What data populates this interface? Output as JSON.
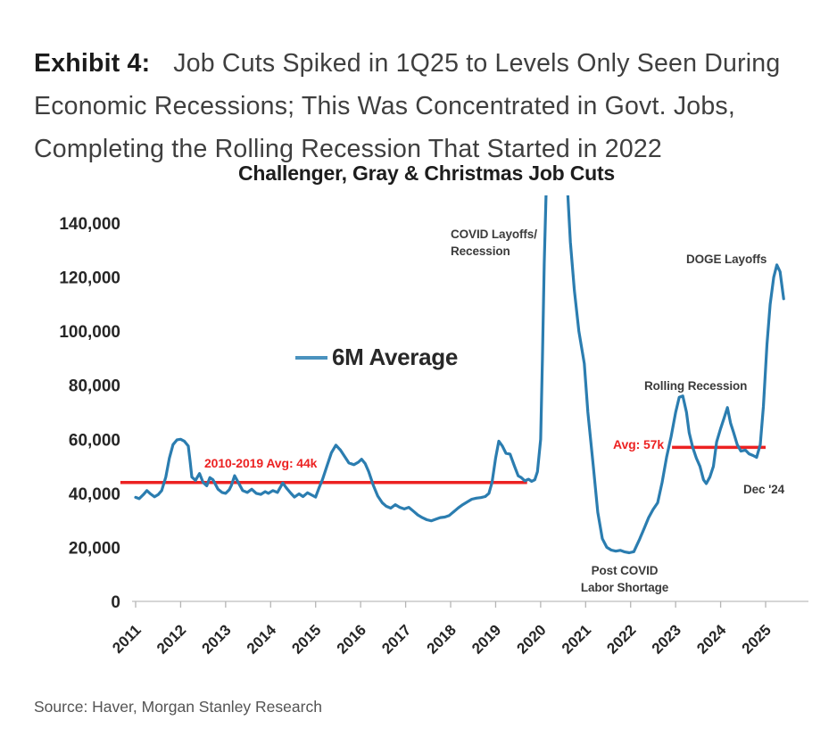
{
  "header": {
    "exhibit_label": "Exhibit 4:",
    "title": "Job Cuts Spiked in 1Q25 to Levels Only Seen During Economic Recessions; This Was Concentrated in Govt. Jobs, Completing the Rolling Recession That Started in 2022"
  },
  "source": "Source: Haver, Morgan Stanley Research",
  "chart_data": {
    "type": "line",
    "title": "Challenger, Gray & Christmas Job Cuts",
    "xlabel": "",
    "ylabel": "",
    "grid": false,
    "legend": {
      "label": "6M Average",
      "position": "inside-plot-upper-left"
    },
    "x_tick_labels": [
      "2011",
      "2012",
      "2013",
      "2014",
      "2015",
      "2016",
      "2017",
      "2018",
      "2019",
      "2020",
      "2021",
      "2022",
      "2023",
      "2024",
      "2025"
    ],
    "y_ticks": [
      {
        "value": 0,
        "label": "0"
      },
      {
        "value": 20000,
        "label": "20,000"
      },
      {
        "value": 40000,
        "label": "40,000"
      },
      {
        "value": 60000,
        "label": "60,000"
      },
      {
        "value": 80000,
        "label": "80,000"
      },
      {
        "value": 100000,
        "label": "100,000"
      },
      {
        "value": 120000,
        "label": "120,000"
      },
      {
        "value": 140000,
        "label": "140,000"
      }
    ],
    "ylim": [
      0,
      150000
    ],
    "x_range": [
      2010.6,
      2025.95
    ],
    "series": [
      {
        "name": "6M Average",
        "color": "#2b7db0",
        "units": "job cuts per month, 6-month average (values in thousands)",
        "points": [
          [
            2011.0,
            38.5
          ],
          [
            2011.08,
            38
          ],
          [
            2011.17,
            39.5
          ],
          [
            2011.25,
            41
          ],
          [
            2011.33,
            39.8
          ],
          [
            2011.42,
            38.7
          ],
          [
            2011.5,
            39.5
          ],
          [
            2011.58,
            41
          ],
          [
            2011.67,
            46
          ],
          [
            2011.75,
            53
          ],
          [
            2011.83,
            58
          ],
          [
            2011.92,
            59.8
          ],
          [
            2012.0,
            60
          ],
          [
            2012.08,
            59.3
          ],
          [
            2012.17,
            57.5
          ],
          [
            2012.21,
            52
          ],
          [
            2012.25,
            46
          ],
          [
            2012.33,
            44.8
          ],
          [
            2012.42,
            47.3
          ],
          [
            2012.5,
            44
          ],
          [
            2012.58,
            42.8
          ],
          [
            2012.65,
            45.8
          ],
          [
            2012.72,
            45
          ],
          [
            2012.83,
            41.5
          ],
          [
            2012.92,
            40.3
          ],
          [
            2013.0,
            40
          ],
          [
            2013.08,
            41.3
          ],
          [
            2013.13,
            43
          ],
          [
            2013.2,
            46.5
          ],
          [
            2013.28,
            44
          ],
          [
            2013.38,
            41
          ],
          [
            2013.48,
            40.3
          ],
          [
            2013.58,
            41.5
          ],
          [
            2013.68,
            40
          ],
          [
            2013.78,
            39.6
          ],
          [
            2013.88,
            40.6
          ],
          [
            2013.95,
            40
          ],
          [
            2014.05,
            41
          ],
          [
            2014.15,
            40.3
          ],
          [
            2014.27,
            43.8
          ],
          [
            2014.35,
            42
          ],
          [
            2014.45,
            40
          ],
          [
            2014.53,
            38.6
          ],
          [
            2014.63,
            39.8
          ],
          [
            2014.72,
            38.8
          ],
          [
            2014.82,
            40.2
          ],
          [
            2014.92,
            39.3
          ],
          [
            2015.0,
            38.6
          ],
          [
            2015.07,
            41.8
          ],
          [
            2015.15,
            45
          ],
          [
            2015.25,
            50
          ],
          [
            2015.35,
            55
          ],
          [
            2015.45,
            57.8
          ],
          [
            2015.55,
            56
          ],
          [
            2015.65,
            53.5
          ],
          [
            2015.74,
            51.2
          ],
          [
            2015.85,
            50.6
          ],
          [
            2015.95,
            51.5
          ],
          [
            2016.02,
            52.6
          ],
          [
            2016.1,
            51
          ],
          [
            2016.18,
            48
          ],
          [
            2016.28,
            43
          ],
          [
            2016.38,
            39
          ],
          [
            2016.48,
            36.5
          ],
          [
            2016.57,
            35.2
          ],
          [
            2016.67,
            34.5
          ],
          [
            2016.77,
            35.8
          ],
          [
            2016.87,
            34.8
          ],
          [
            2016.97,
            34.2
          ],
          [
            2017.07,
            34.8
          ],
          [
            2017.17,
            33.4
          ],
          [
            2017.27,
            32
          ],
          [
            2017.37,
            31
          ],
          [
            2017.47,
            30.2
          ],
          [
            2017.57,
            29.8
          ],
          [
            2017.67,
            30.4
          ],
          [
            2017.77,
            31
          ],
          [
            2017.87,
            31.2
          ],
          [
            2017.97,
            31.8
          ],
          [
            2018.07,
            33.2
          ],
          [
            2018.17,
            34.6
          ],
          [
            2018.27,
            35.8
          ],
          [
            2018.37,
            36.8
          ],
          [
            2018.47,
            37.8
          ],
          [
            2018.57,
            38.2
          ],
          [
            2018.67,
            38.4
          ],
          [
            2018.77,
            38.8
          ],
          [
            2018.85,
            40
          ],
          [
            2018.92,
            44
          ],
          [
            2019.0,
            53
          ],
          [
            2019.07,
            59.3
          ],
          [
            2019.15,
            57.5
          ],
          [
            2019.23,
            54.8
          ],
          [
            2019.32,
            54.5
          ],
          [
            2019.42,
            50
          ],
          [
            2019.5,
            46.5
          ],
          [
            2019.57,
            45.8
          ],
          [
            2019.65,
            44.6
          ],
          [
            2019.73,
            45.2
          ],
          [
            2019.8,
            44.4
          ],
          [
            2019.87,
            45
          ],
          [
            2019.93,
            48
          ],
          [
            2020.0,
            60
          ],
          [
            2020.04,
            90
          ],
          [
            2020.08,
            125
          ],
          [
            2020.12,
            150
          ],
          [
            2020.2,
            163
          ],
          [
            2020.45,
            165
          ],
          [
            2020.6,
            152
          ],
          [
            2020.66,
            133
          ],
          [
            2020.75,
            115
          ],
          [
            2020.85,
            100
          ],
          [
            2020.97,
            88
          ],
          [
            2021.05,
            70
          ],
          [
            2021.17,
            50
          ],
          [
            2021.27,
            33
          ],
          [
            2021.37,
            23.2
          ],
          [
            2021.47,
            20
          ],
          [
            2021.57,
            19
          ],
          [
            2021.67,
            18.6
          ],
          [
            2021.77,
            18.9
          ],
          [
            2021.87,
            18.3
          ],
          [
            2021.97,
            18
          ],
          [
            2022.07,
            18.4
          ],
          [
            2022.2,
            23
          ],
          [
            2022.3,
            27
          ],
          [
            2022.4,
            31
          ],
          [
            2022.5,
            34
          ],
          [
            2022.6,
            36.5
          ],
          [
            2022.7,
            44
          ],
          [
            2022.8,
            53.5
          ],
          [
            2022.9,
            61
          ],
          [
            2023.0,
            70
          ],
          [
            2023.08,
            75.5
          ],
          [
            2023.16,
            76
          ],
          [
            2023.24,
            70
          ],
          [
            2023.3,
            62.5
          ],
          [
            2023.38,
            57
          ],
          [
            2023.46,
            53
          ],
          [
            2023.54,
            50
          ],
          [
            2023.62,
            45
          ],
          [
            2023.68,
            43.6
          ],
          [
            2023.76,
            46
          ],
          [
            2023.84,
            50
          ],
          [
            2023.91,
            59
          ],
          [
            2024.0,
            64
          ],
          [
            2024.08,
            68
          ],
          [
            2024.15,
            71.7
          ],
          [
            2024.22,
            66
          ],
          [
            2024.29,
            62.4
          ],
          [
            2024.37,
            58
          ],
          [
            2024.45,
            55.6
          ],
          [
            2024.55,
            56
          ],
          [
            2024.63,
            54.6
          ],
          [
            2024.72,
            54
          ],
          [
            2024.8,
            53.3
          ],
          [
            2024.88,
            58
          ],
          [
            2024.95,
            72
          ],
          [
            2025.03,
            95
          ],
          [
            2025.1,
            110
          ],
          [
            2025.18,
            120
          ],
          [
            2025.25,
            124.5
          ],
          [
            2025.32,
            122
          ],
          [
            2025.4,
            112
          ]
        ]
      }
    ],
    "reference_lines": [
      {
        "label": "2010-2019 Avg: 44k",
        "value_thousands": 44,
        "x_from": 2010.66,
        "x_to": 2019.7,
        "color": "#ec2222"
      },
      {
        "label": "Avg: 57k",
        "value_thousands": 57,
        "x_from": 2022.92,
        "x_to": 2025.0,
        "color": "#ec2222"
      }
    ],
    "annotations": {
      "covid_line1": "COVID Layoffs/",
      "covid_line2": "Recession",
      "doge": "DOGE Layoffs",
      "rolling": "Rolling Recession",
      "avg57": "Avg: 57k",
      "avg44": "2010-2019 Avg: 44k",
      "dec24": "Dec '24",
      "postcovid_line1": "Post COVID",
      "postcovid_line2": "Labor Shortage"
    }
  }
}
